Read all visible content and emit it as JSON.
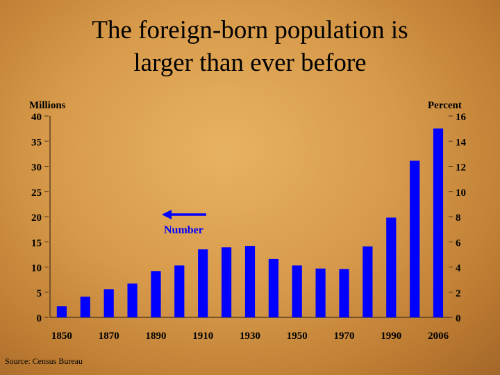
{
  "title_line1": "The foreign-born population is",
  "title_line2": "larger than ever before",
  "source": "Source: Census Bureau",
  "chart_data": {
    "type": "bar",
    "categories": [
      "1850",
      "1860",
      "1870",
      "1880",
      "1890",
      "1900",
      "1910",
      "1920",
      "1930",
      "1940",
      "1950",
      "1960",
      "1970",
      "1980",
      "1990",
      "2000",
      "2006"
    ],
    "x_tick_labels": [
      "1850",
      "1870",
      "1890",
      "1910",
      "1930",
      "1950",
      "1970",
      "1990",
      "2006"
    ],
    "series": [
      {
        "name": "Number",
        "values": [
          2.2,
          4.1,
          5.6,
          6.7,
          9.2,
          10.3,
          13.5,
          13.9,
          14.2,
          11.6,
          10.3,
          9.7,
          9.6,
          14.1,
          19.8,
          31.1,
          37.5
        ]
      }
    ],
    "ylabel_left": "Millions",
    "ylabel_right": "Percent",
    "ylim": [
      0,
      40
    ],
    "y_ticks_left": [
      "0",
      "5",
      "10",
      "15",
      "20",
      "25",
      "30",
      "35",
      "40"
    ],
    "y_ticks_right": [
      "0",
      "2",
      "4",
      "6",
      "8",
      "10",
      "12",
      "14",
      "16"
    ],
    "legend_label": "Number",
    "bar_color": "#0000ff",
    "grid": false
  }
}
